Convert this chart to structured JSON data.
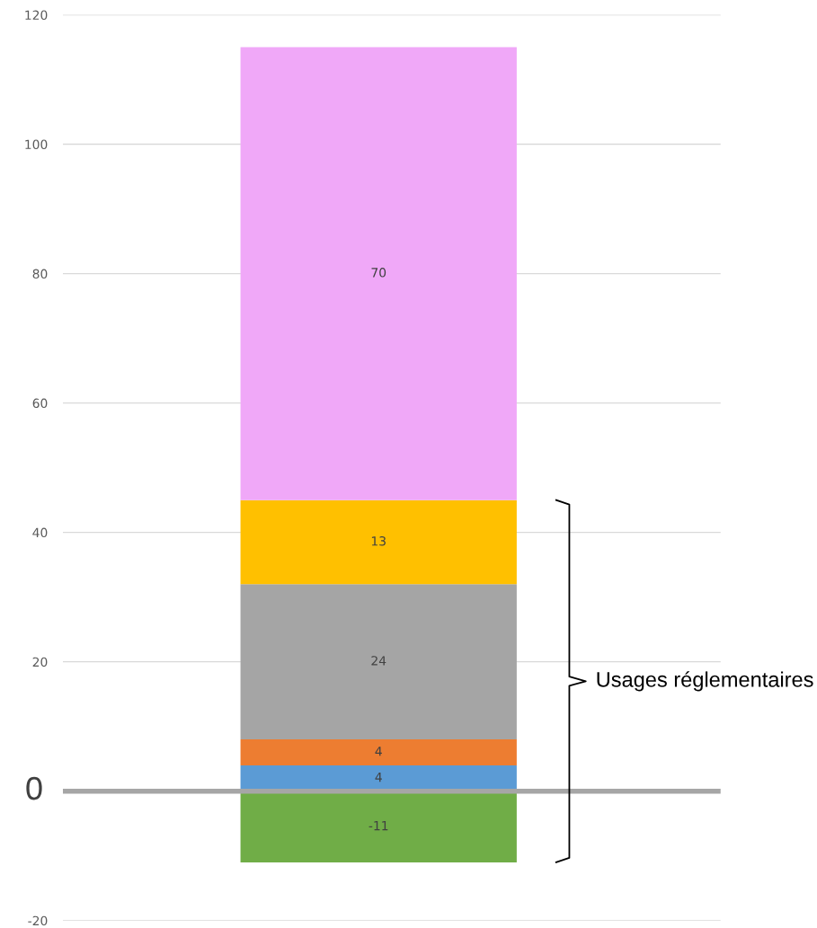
{
  "chart_data": {
    "type": "bar",
    "stacked": true,
    "categories": [
      null
    ],
    "series": [
      {
        "color": "#70ad47",
        "values": [
          -11
        ]
      },
      {
        "color": "#5b9bd5",
        "values": [
          4
        ]
      },
      {
        "color": "#ed7d31",
        "values": [
          4
        ]
      },
      {
        "color": "#a5a5a5",
        "values": [
          24
        ]
      },
      {
        "color": "#ffc000",
        "values": [
          13
        ]
      },
      {
        "color": "#f0a8f8",
        "values": [
          70
        ]
      }
    ],
    "ylim": [
      -20,
      120
    ],
    "yticks": [
      -20,
      20,
      40,
      60,
      80,
      100,
      120
    ],
    "ref_lines": [
      {
        "axis": "y",
        "value": 0,
        "label": "0",
        "color": "#a6a6a6"
      }
    ],
    "annotations": [
      "Usages réglementaires"
    ],
    "grid": "y",
    "data_labels": true
  }
}
